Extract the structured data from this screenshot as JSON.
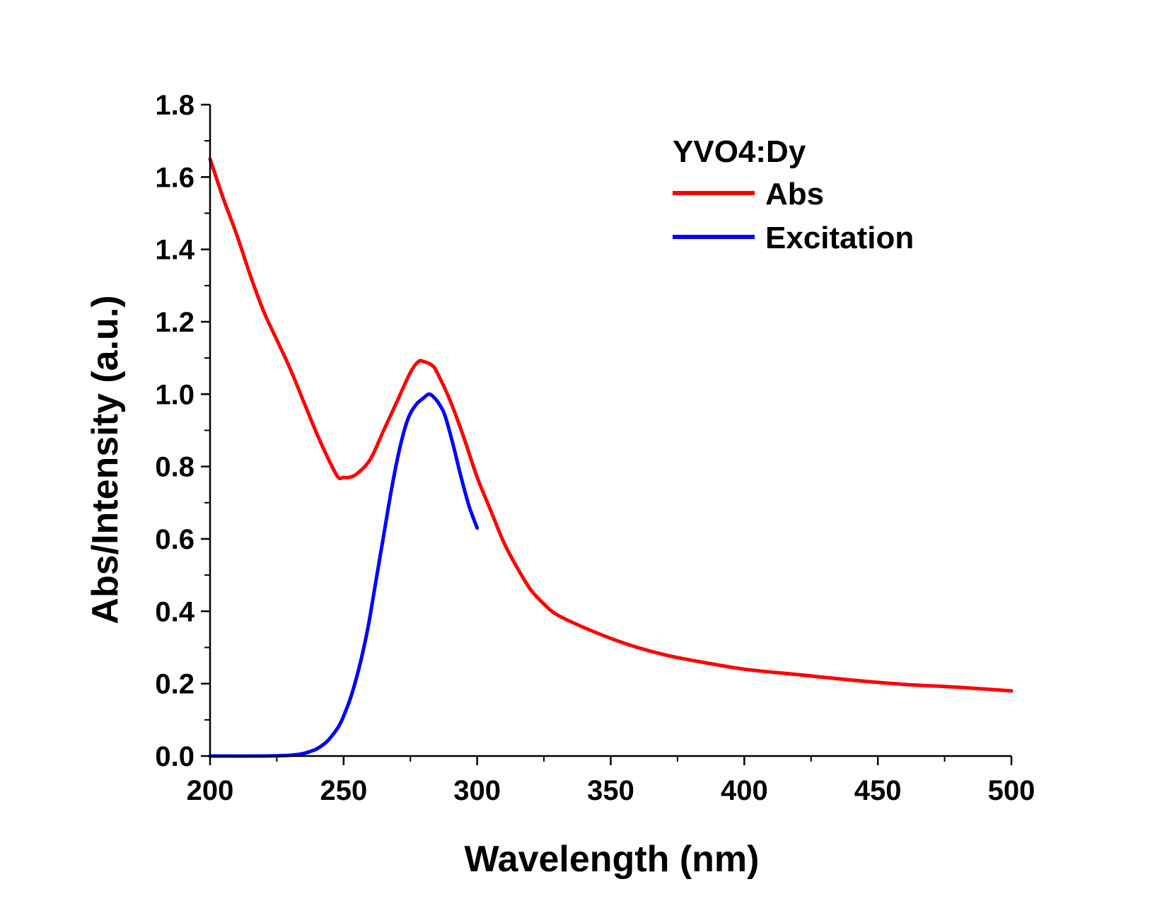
{
  "chart_data": {
    "type": "line",
    "xlabel": "Wavelength (nm)",
    "ylabel": "Abs/Intensity (a.u.)",
    "xlim": [
      200,
      500
    ],
    "ylim": [
      0.0,
      1.8
    ],
    "xticks": [
      "200",
      "250",
      "300",
      "350",
      "400",
      "450",
      "500"
    ],
    "yticks": [
      "0.0",
      "0.2",
      "0.4",
      "0.6",
      "0.8",
      "1.0",
      "1.2",
      "1.4",
      "1.6",
      "1.8"
    ],
    "grid": false,
    "legend": {
      "title": "YVO4:Dy",
      "placement": "top-right"
    },
    "series": [
      {
        "name": "Abs",
        "color": "#ff0000",
        "x": [
          200,
          205,
          210,
          215,
          220,
          225,
          230,
          235,
          240,
          245,
          248,
          250,
          252,
          255,
          260,
          265,
          270,
          275,
          278,
          280,
          283,
          285,
          290,
          295,
          300,
          305,
          310,
          315,
          320,
          325,
          330,
          340,
          350,
          360,
          370,
          380,
          400,
          420,
          440,
          460,
          480,
          500
        ],
        "y": [
          1.65,
          1.54,
          1.44,
          1.33,
          1.23,
          1.15,
          1.07,
          0.98,
          0.89,
          0.81,
          0.77,
          0.77,
          0.77,
          0.78,
          0.82,
          0.9,
          0.98,
          1.06,
          1.09,
          1.09,
          1.08,
          1.06,
          0.98,
          0.88,
          0.77,
          0.68,
          0.59,
          0.52,
          0.46,
          0.42,
          0.39,
          0.355,
          0.325,
          0.3,
          0.28,
          0.265,
          0.24,
          0.225,
          0.21,
          0.198,
          0.19,
          0.18
        ]
      },
      {
        "name": "Excitation",
        "color": "#0000ff",
        "x": [
          200,
          220,
          230,
          235,
          238,
          240,
          243,
          245,
          248,
          250,
          253,
          256,
          259,
          262,
          265,
          268,
          271,
          274,
          277,
          280,
          282,
          284,
          286,
          288,
          291,
          294,
          297,
          300
        ],
        "y": [
          0.0,
          0.0,
          0.002,
          0.007,
          0.014,
          0.02,
          0.035,
          0.05,
          0.08,
          0.11,
          0.17,
          0.25,
          0.35,
          0.48,
          0.61,
          0.74,
          0.85,
          0.93,
          0.97,
          0.99,
          1.0,
          0.99,
          0.97,
          0.94,
          0.86,
          0.77,
          0.69,
          0.63
        ]
      }
    ]
  }
}
